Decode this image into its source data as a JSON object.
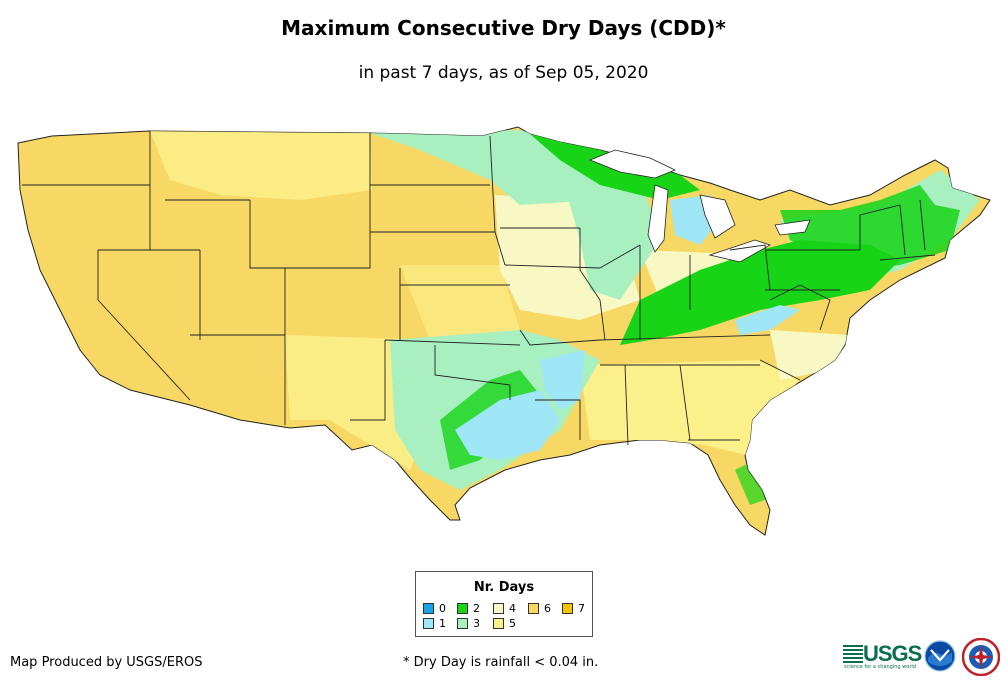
{
  "title": "Maximum Consecutive Dry Days (CDD)*",
  "subtitle": "in past 7 days, as of Sep 05, 2020",
  "legend": {
    "title": "Nr. Days",
    "items": [
      {
        "label": "0",
        "color": "#1aa3e8"
      },
      {
        "label": "1",
        "color": "#9fe6f7"
      },
      {
        "label": "2",
        "color": "#17d417"
      },
      {
        "label": "3",
        "color": "#a8f0c0"
      },
      {
        "label": "4",
        "color": "#f8f8c4"
      },
      {
        "label": "5",
        "color": "#fbf08a"
      },
      {
        "label": "6",
        "color": "#f7d865"
      },
      {
        "label": "7",
        "color": "#f5c400"
      }
    ]
  },
  "footer": {
    "credit": "Map Produced by USGS/EROS",
    "note": "* Dry Day is rainfall < 0.04 in."
  },
  "logos": {
    "usgs_word": "USGS",
    "usgs_tagline": "science for a changing world",
    "noaa": "noaa",
    "nws": "NWS"
  }
}
